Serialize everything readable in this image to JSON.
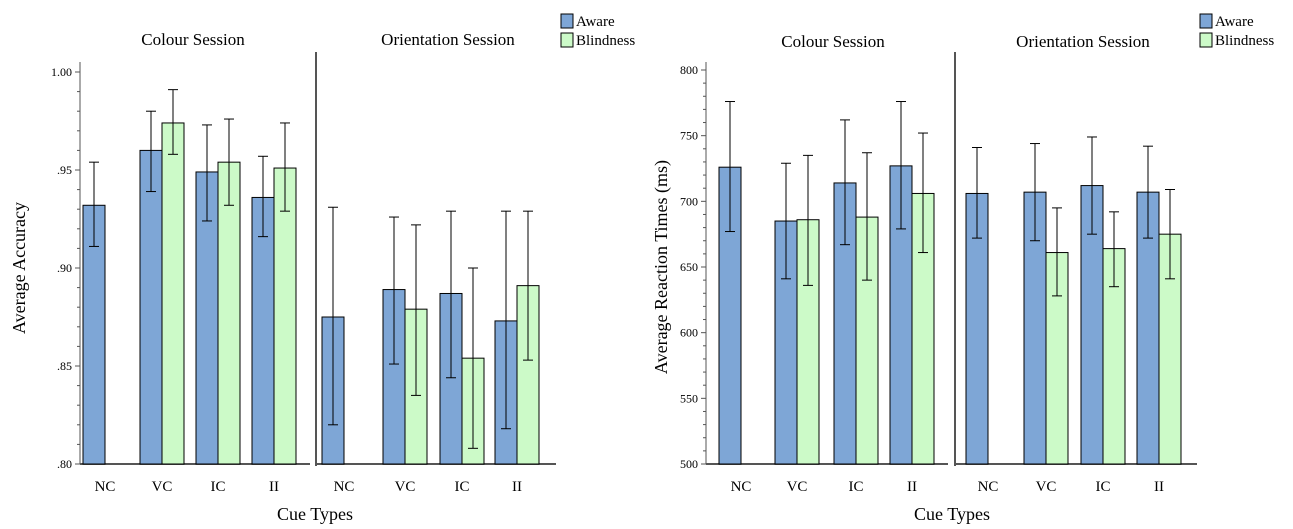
{
  "colors": {
    "aware": "#7ea6d6",
    "blindness": "#ccfac8",
    "axis": "#555555",
    "frame": "#000000"
  },
  "chart_data": [
    {
      "type": "bar",
      "xlabel": "Cue Types",
      "ylabel": "Average Accuracy",
      "ylim": [
        0.8,
        1.0
      ],
      "yticks": [
        0.8,
        0.85,
        0.9,
        0.95,
        1.0
      ],
      "ytick_labels": [
        ".80",
        ".85",
        ".90",
        ".95",
        "1.00"
      ],
      "legend": [
        "Aware",
        "Blindness"
      ],
      "legend_position": "top-right",
      "panels": [
        {
          "title": "Colour Session",
          "categories": [
            "NC",
            "VC",
            "IC",
            "II"
          ],
          "series": [
            {
              "name": "Aware",
              "values": [
                0.932,
                0.96,
                0.949,
                0.936
              ],
              "error_low": [
                0.911,
                0.939,
                0.924,
                0.916
              ],
              "error_high": [
                0.954,
                0.98,
                0.973,
                0.957
              ]
            },
            {
              "name": "Blindness",
              "values": [
                null,
                0.974,
                0.954,
                0.951
              ],
              "error_low": [
                null,
                0.958,
                0.932,
                0.929
              ],
              "error_high": [
                null,
                0.991,
                0.976,
                0.974
              ]
            }
          ]
        },
        {
          "title": "Orientation Session",
          "categories": [
            "NC",
            "VC",
            "IC",
            "II"
          ],
          "series": [
            {
              "name": "Aware",
              "values": [
                0.875,
                0.889,
                0.887,
                0.873
              ],
              "error_low": [
                0.82,
                0.851,
                0.844,
                0.818
              ],
              "error_high": [
                0.931,
                0.926,
                0.929,
                0.929
              ]
            },
            {
              "name": "Blindness",
              "values": [
                null,
                0.879,
                0.854,
                0.891
              ],
              "error_low": [
                null,
                0.835,
                0.808,
                0.853
              ],
              "error_high": [
                null,
                0.922,
                0.9,
                0.929
              ]
            }
          ]
        }
      ]
    },
    {
      "type": "bar",
      "xlabel": "Cue Types",
      "ylabel": "Average Reaction Times (ms)",
      "ylim": [
        500,
        800
      ],
      "yticks": [
        500,
        550,
        600,
        650,
        700,
        750,
        800
      ],
      "ytick_labels": [
        "500",
        "550",
        "600",
        "650",
        "700",
        "750",
        "800"
      ],
      "legend": [
        "Aware",
        "Blindness"
      ],
      "legend_position": "top-right",
      "panels": [
        {
          "title": "Colour Session",
          "categories": [
            "NC",
            "VC",
            "IC",
            "II"
          ],
          "series": [
            {
              "name": "Aware",
              "values": [
                726,
                685,
                714,
                727
              ],
              "error_low": [
                677,
                641,
                667,
                679
              ],
              "error_high": [
                776,
                729,
                762,
                776
              ]
            },
            {
              "name": "Blindness",
              "values": [
                null,
                686,
                688,
                706
              ],
              "error_low": [
                null,
                636,
                640,
                661
              ],
              "error_high": [
                null,
                735,
                737,
                752
              ]
            }
          ]
        },
        {
          "title": "Orientation Session",
          "categories": [
            "NC",
            "VC",
            "IC",
            "II"
          ],
          "series": [
            {
              "name": "Aware",
              "values": [
                706,
                707,
                712,
                707
              ],
              "error_low": [
                672,
                670,
                675,
                672
              ],
              "error_high": [
                741,
                744,
                749,
                742
              ]
            },
            {
              "name": "Blindness",
              "values": [
                null,
                661,
                664,
                675
              ],
              "error_low": [
                null,
                628,
                635,
                641
              ],
              "error_high": [
                null,
                695,
                692,
                709
              ]
            }
          ]
        }
      ]
    }
  ]
}
